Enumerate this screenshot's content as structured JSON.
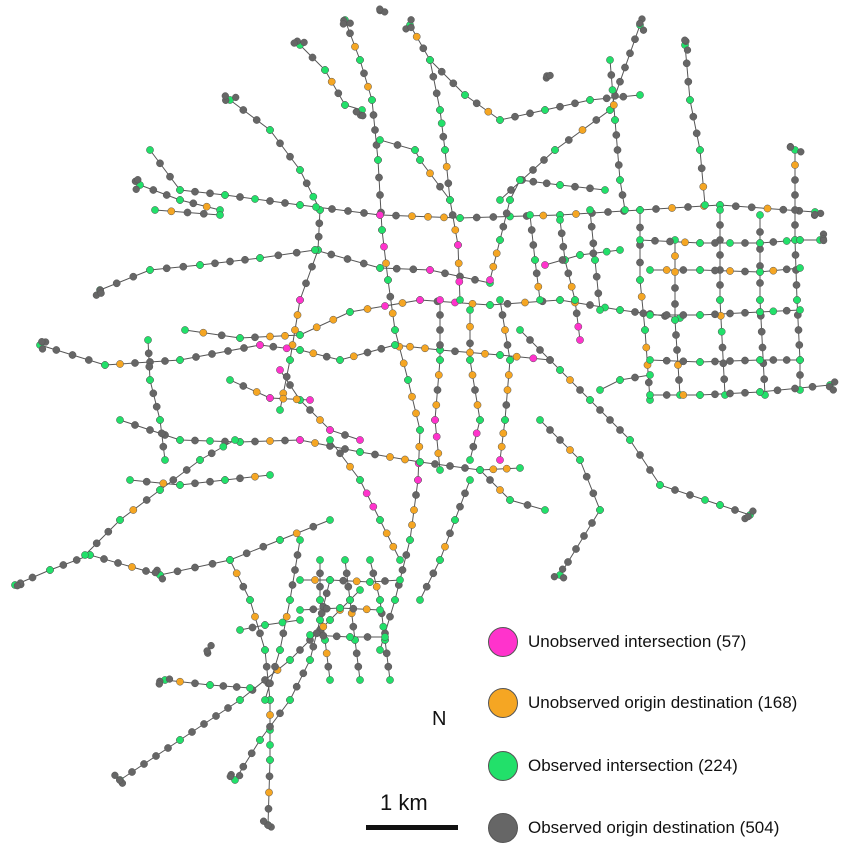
{
  "legend": {
    "items": [
      {
        "label": "Unobserved intersection (57)",
        "color": "#ff33cc"
      },
      {
        "label": "Unobserved origin destination (168)",
        "color": "#f5a623"
      },
      {
        "label": "Observed intersection (224)",
        "color": "#22e06a"
      },
      {
        "label": "Observed origin destination (504)",
        "color": "#666666"
      }
    ]
  },
  "north_label": "N",
  "scale_label": "1 km",
  "colors": {
    "edge": "#555555",
    "unobserved_intersection": "#ff33cc",
    "unobserved_od": "#f5a623",
    "observed_intersection": "#22e06a",
    "observed_od": "#666666"
  }
}
